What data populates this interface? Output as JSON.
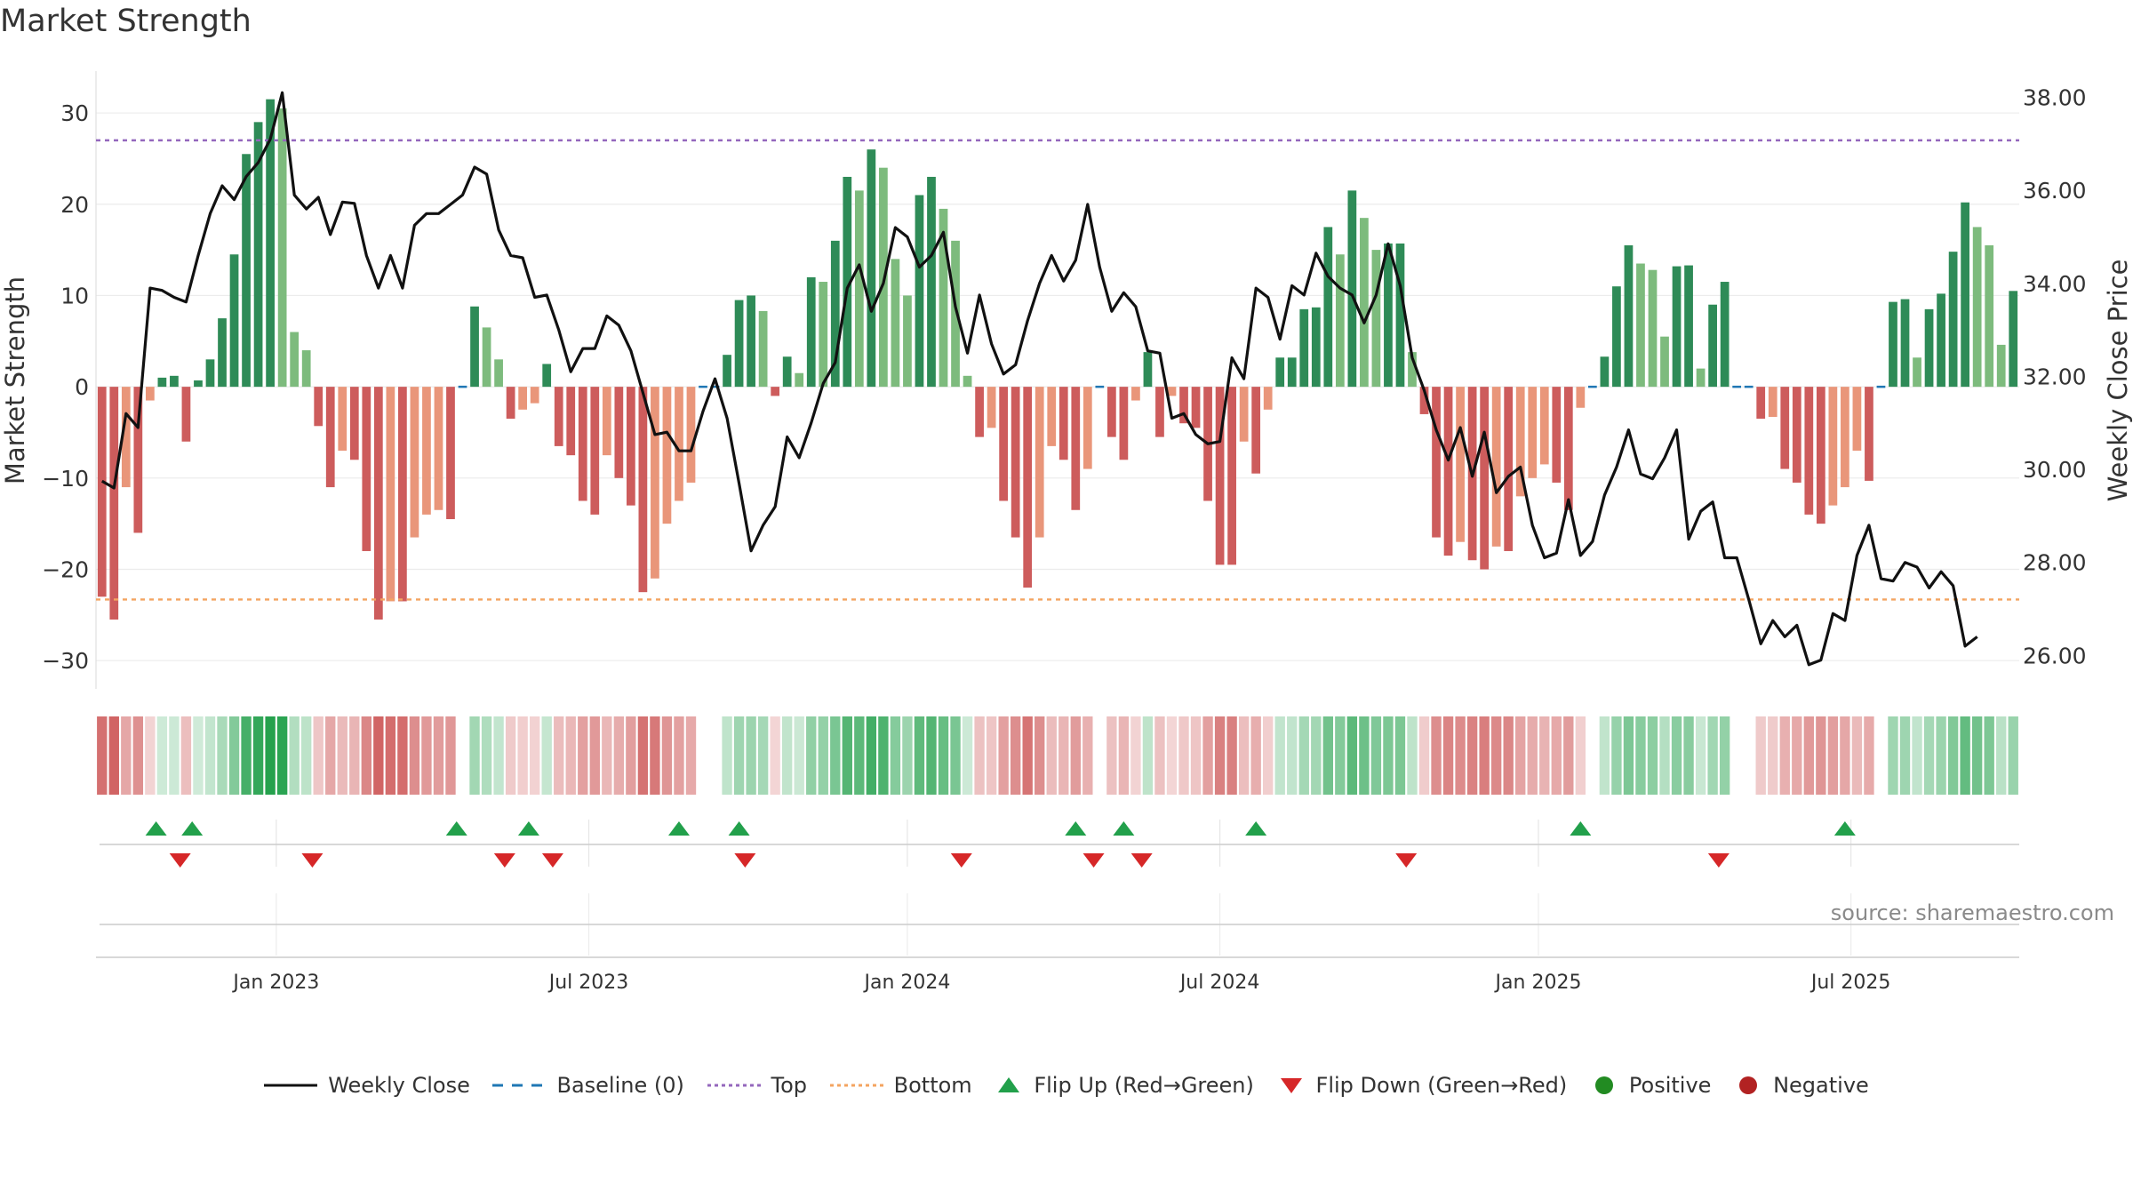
{
  "title": "Market Strength",
  "source": "source: sharemaestro.com",
  "colors": {
    "pos_strong": "#2e8b57",
    "pos_weak": "#7dbb7d",
    "neg_strong": "#cd5c5c",
    "neg_weak": "#e9967a",
    "line": "#111111",
    "baseline": "#1f77b4",
    "top": "#9467bd",
    "bottom": "#f4a460",
    "flip_up": "#22a04b",
    "flip_down": "#d62728",
    "positive": "#228b22",
    "negative": "#b22222"
  },
  "legend": [
    {
      "key": "close",
      "label": "Weekly Close"
    },
    {
      "key": "baseline",
      "label": "Baseline (0)"
    },
    {
      "key": "top",
      "label": "Top"
    },
    {
      "key": "bottom",
      "label": "Bottom"
    },
    {
      "key": "flip_up",
      "label": "Flip Up (Red→Green)"
    },
    {
      "key": "flip_down",
      "label": "Flip Down (Green→Red)"
    },
    {
      "key": "positive",
      "label": "Positive"
    },
    {
      "key": "negative",
      "label": "Negative"
    }
  ],
  "chart_data": {
    "type": "bar",
    "title": "Market Strength",
    "ylabel": "Market Strength",
    "y2label": "Weekly Close Price",
    "ylim": [
      -33,
      34
    ],
    "y2lim": [
      25.3,
      38.45
    ],
    "yticks": [
      "30",
      "20",
      "10",
      "0",
      "−10",
      "−20",
      "−30"
    ],
    "y2ticks": [
      "38.00",
      "36.00",
      "34.00",
      "32.00",
      "30.00",
      "28.00",
      "26.00"
    ],
    "x_range": [
      0,
      160
    ],
    "xticks": [
      {
        "label": "Jan 2023",
        "x": 15
      },
      {
        "label": "Jul 2023",
        "x": 41
      },
      {
        "label": "Jan 2024",
        "x": 67.5
      },
      {
        "label": "Jul 2024",
        "x": 93.5
      },
      {
        "label": "Jan 2025",
        "x": 120
      },
      {
        "label": "Jul 2025",
        "x": 146
      }
    ],
    "top_level": 27,
    "bottom_level": -23.3,
    "strength": [
      -23,
      -25.5,
      -11,
      -16,
      -1.5,
      1,
      1.2,
      -6,
      0.7,
      3,
      7.5,
      14.5,
      25.5,
      29,
      31.5,
      30.5,
      6,
      4,
      -4.3,
      -11,
      -7,
      -8,
      -18,
      -25.5,
      -23.5,
      -23.5,
      -16.5,
      -14,
      -13.5,
      -14.5,
      0,
      8.8,
      6.5,
      3,
      -3.5,
      -2.5,
      -1.8,
      2.5,
      -6.5,
      -7.5,
      -12.5,
      -14,
      -7.5,
      -10,
      -13,
      -22.5,
      -21,
      -15,
      -12.5,
      -10.5,
      0,
      0,
      3.5,
      9.5,
      10,
      8.3,
      -1,
      3.3,
      1.5,
      12,
      11.5,
      16,
      23,
      21.5,
      26,
      24,
      14,
      10,
      21,
      23,
      19.5,
      16,
      1.2,
      -5.5,
      -4.5,
      -12.5,
      -16.5,
      -22,
      -16.5,
      -6.5,
      -8,
      -13.5,
      -9,
      0,
      -5.5,
      -8,
      -1.5,
      3.8,
      -5.5,
      -1,
      -4,
      -4.5,
      -12.5,
      -19.5,
      -19.5,
      -6,
      -9.5,
      -2.5,
      3.2,
      3.2,
      8.5,
      8.7,
      17.5,
      14.5,
      21.5,
      18.5,
      15,
      15.7,
      15.7,
      3.8,
      -3,
      -16.5,
      -18.5,
      -17,
      -19,
      -20,
      -17.5,
      -18,
      -12,
      -10,
      -8.5,
      -10.5,
      -13.5,
      -2.3,
      0,
      3.3,
      11,
      15.5,
      13.5,
      12.8,
      5.5,
      13.2,
      13.3,
      2,
      9,
      11.5,
      0,
      0,
      -3.5,
      -3.3,
      -9,
      -10.5,
      -14,
      -15,
      -13,
      -11,
      -7,
      -10.3,
      0,
      9.3,
      9.6,
      3.2,
      8.5,
      10.2,
      14.8,
      20.2,
      17.5,
      15.5,
      4.6,
      10.5
    ],
    "close": [
      29.75,
      29.6,
      31.2,
      30.9,
      33.9,
      33.85,
      33.7,
      33.6,
      34.6,
      35.5,
      36.1,
      35.8,
      36.3,
      36.6,
      37.1,
      38.1,
      35.9,
      35.6,
      35.85,
      35.05,
      35.75,
      35.72,
      34.6,
      33.9,
      34.6,
      33.9,
      35.25,
      35.5,
      35.5,
      35.7,
      35.9,
      36.5,
      36.35,
      35.15,
      34.6,
      34.55,
      33.7,
      33.75,
      33.0,
      32.1,
      32.6,
      32.6,
      33.3,
      33.1,
      32.55,
      31.65,
      30.75,
      30.8,
      30.4,
      30.4,
      31.25,
      31.95,
      31.1,
      29.7,
      28.25,
      28.8,
      29.2,
      30.7,
      30.25,
      31.0,
      31.85,
      32.3,
      33.9,
      34.4,
      33.4,
      34.0,
      35.2,
      35.0,
      34.35,
      34.6,
      35.1,
      33.5,
      32.5,
      33.75,
      32.7,
      32.05,
      32.25,
      33.2,
      34.0,
      34.6,
      34.05,
      34.5,
      35.7,
      34.35,
      33.4,
      33.8,
      33.5,
      32.55,
      32.5,
      31.1,
      31.2,
      30.75,
      30.55,
      30.6,
      32.4,
      31.95,
      33.9,
      33.7,
      32.8,
      33.95,
      33.75,
      34.65,
      34.15,
      33.9,
      33.75,
      33.15,
      33.75,
      34.85,
      33.95,
      32.4,
      31.7,
      30.85,
      30.2,
      30.9,
      29.85,
      30.8,
      29.5,
      29.85,
      30.05,
      28.8,
      28.1,
      28.2,
      29.35,
      28.15,
      28.45,
      29.45,
      30.05,
      30.85,
      29.9,
      29.8,
      30.25,
      30.85,
      28.5,
      29.1,
      29.3,
      28.1,
      28.1,
      27.2,
      26.25,
      26.75,
      26.4,
      26.65,
      25.8,
      25.9,
      26.9,
      26.75,
      28.15,
      28.8,
      27.65,
      27.6,
      28.0,
      27.9,
      27.45,
      27.8,
      27.5,
      26.2,
      26.4
    ],
    "flip_up_x": [
      5,
      8,
      30,
      36,
      48.5,
      53.5,
      81.5,
      85.5,
      96.5,
      123.5,
      145.5
    ],
    "flip_down_x": [
      7,
      18,
      34,
      38,
      54,
      72,
      83,
      87,
      109,
      135
    ]
  }
}
